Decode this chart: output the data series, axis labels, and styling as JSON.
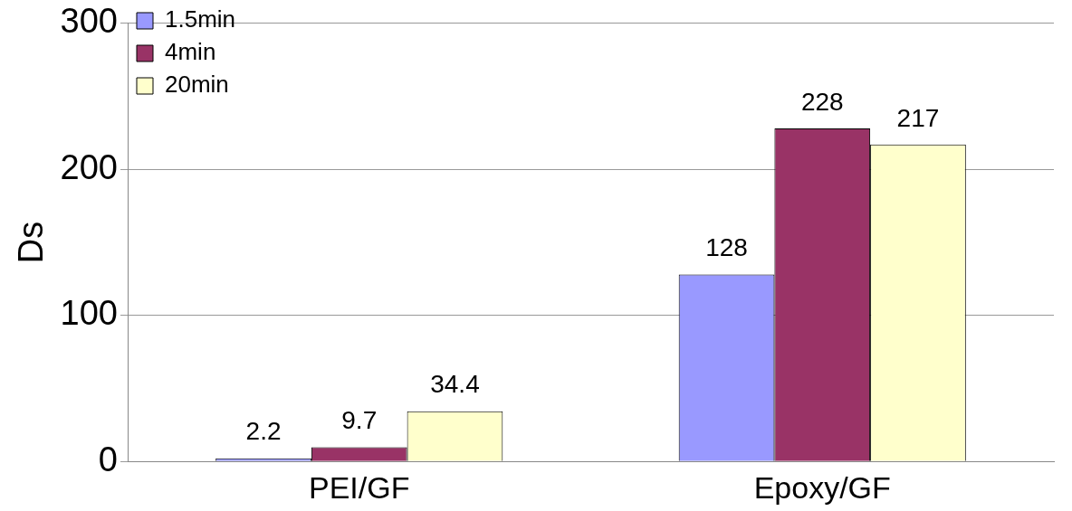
{
  "chart_data": {
    "type": "bar",
    "ylabel": "Ds",
    "categories": [
      "PEI/GF",
      "Epoxy/GF"
    ],
    "series": [
      {
        "name": "1.5min",
        "color": "#9999ff",
        "values": [
          2.2,
          128
        ]
      },
      {
        "name": "4min",
        "color": "#993366",
        "values": [
          9.7,
          228
        ]
      },
      {
        "name": "20min",
        "color": "#ffffcc",
        "values": [
          34.4,
          217
        ]
      }
    ],
    "ylim": [
      0,
      300
    ],
    "yticks": [
      0,
      100,
      200,
      300
    ],
    "grid": "y",
    "legend": "top left",
    "data_labels": true
  }
}
